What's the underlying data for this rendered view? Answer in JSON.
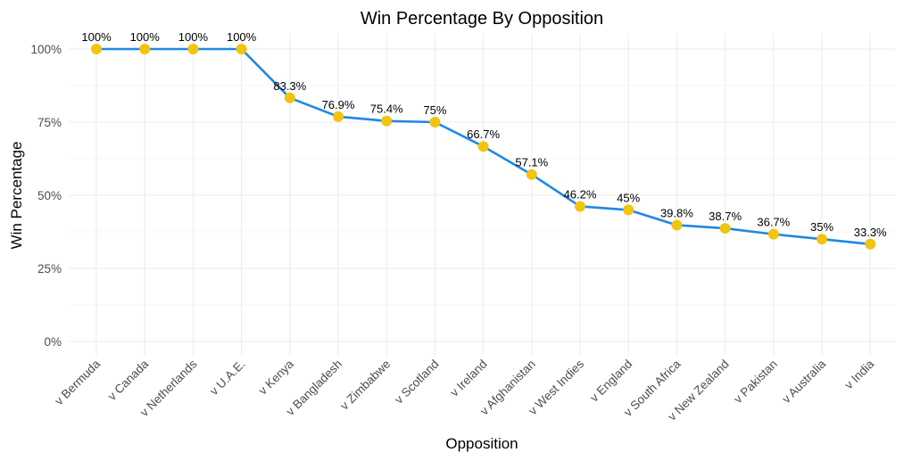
{
  "chart_data": {
    "type": "line",
    "title": "Win Percentage By Opposition",
    "xlabel": "Opposition",
    "ylabel": "Win Percentage",
    "categories": [
      "v Bermuda",
      "v Canada",
      "v Netherlands",
      "v U.A.E.",
      "v Kenya",
      "v Bangladesh",
      "v Zimbabwe",
      "v Scotland",
      "v Ireland",
      "v Afghanistan",
      "v West Indies",
      "v England",
      "v South Africa",
      "v New Zealand",
      "v Pakistan",
      "v Australia",
      "v India"
    ],
    "values": [
      100,
      100,
      100,
      100,
      83.3,
      76.9,
      75.4,
      75,
      66.7,
      57.1,
      46.2,
      45,
      39.8,
      38.7,
      36.7,
      35,
      33.3
    ],
    "data_labels": [
      "100%",
      "100%",
      "100%",
      "100%",
      "83.3%",
      "76.9%",
      "75.4%",
      "75%",
      "66.7%",
      "57.1%",
      "46.2%",
      "45%",
      "39.8%",
      "38.7%",
      "36.7%",
      "35%",
      "33.3%"
    ],
    "ylim": [
      0,
      100
    ],
    "yticks": [
      0,
      25,
      50,
      75,
      100
    ],
    "ytick_labels": [
      "0%",
      "25%",
      "50%",
      "75%",
      "100%"
    ],
    "grid": true,
    "legend": "none",
    "colors": {
      "line": "#1e88e5",
      "point": "#f2c40f"
    }
  }
}
